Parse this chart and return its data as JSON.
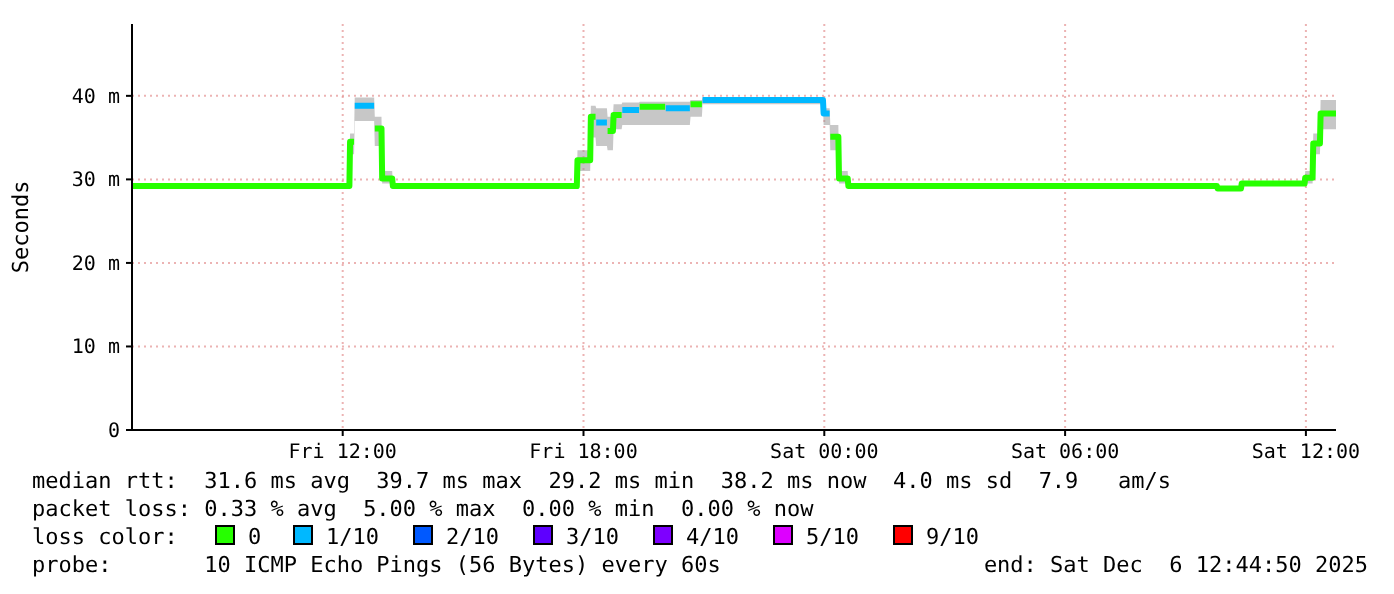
{
  "chart_data": {
    "type": "line",
    "ylabel": "Seconds",
    "legend_title": "loss color:",
    "legend": "bottom",
    "grid": true,
    "x": [
      "2025-12-05T06:45",
      "2025-12-05T12:10",
      "2025-12-05T12:11",
      "2025-12-05T12:17",
      "2025-12-05T12:18",
      "2025-12-05T12:47",
      "2025-12-05T12:48",
      "2025-12-05T12:58",
      "2025-12-05T12:59",
      "2025-12-05T13:14",
      "2025-12-05T13:15",
      "2025-12-05T17:50",
      "2025-12-05T17:51",
      "2025-12-05T18:10",
      "2025-12-05T18:11",
      "2025-12-05T18:18",
      "2025-12-05T18:19",
      "2025-12-05T18:35",
      "2025-12-05T18:36",
      "2025-12-05T18:44",
      "2025-12-05T18:45",
      "2025-12-05T18:57",
      "2025-12-05T18:58",
      "2025-12-05T19:23",
      "2025-12-05T19:24",
      "2025-12-05T20:02",
      "2025-12-05T20:03",
      "2025-12-05T20:39",
      "2025-12-05T20:40",
      "2025-12-05T20:57",
      "2025-12-05T20:58",
      "2025-12-05T23:58",
      "2025-12-05T23:59",
      "2025-12-06T00:08",
      "2025-12-06T00:09",
      "2025-12-06T00:21",
      "2025-12-06T00:22",
      "2025-12-06T00:35",
      "2025-12-06T00:36",
      "2025-12-06T09:47",
      "2025-12-06T09:48",
      "2025-12-06T10:23",
      "2025-12-06T10:24",
      "2025-12-06T11:58",
      "2025-12-06T11:59",
      "2025-12-06T12:10",
      "2025-12-06T12:11",
      "2025-12-06T12:21",
      "2025-12-06T12:22",
      "2025-12-06T12:45"
    ],
    "xlim": [
      "2025-12-05T06:45",
      "2025-12-06T12:45"
    ],
    "xticks": [
      {
        "value": "2025-12-05T12:00",
        "label": "Fri 12:00"
      },
      {
        "value": "2025-12-05T18:00",
        "label": "Fri 18:00"
      },
      {
        "value": "2025-12-06T00:00",
        "label": "Sat 00:00"
      },
      {
        "value": "2025-12-06T06:00",
        "label": "Sat 06:00"
      },
      {
        "value": "2025-12-06T12:00",
        "label": "Sat 12:00"
      }
    ],
    "ylim": [
      0,
      48.6
    ],
    "yticks": [
      0,
      {
        "value": 10,
        "label": "10 m"
      },
      {
        "value": 20,
        "label": "20 m"
      },
      {
        "value": 30,
        "label": "30 m"
      },
      {
        "value": 40,
        "label": "40 m"
      }
    ],
    "series": [
      {
        "name": "0",
        "color": "#26ff00",
        "values": [
          29.2,
          29.2,
          34.5,
          34.5,
          null,
          null,
          36.1,
          36.1,
          30.1,
          30.1,
          29.2,
          29.2,
          32.3,
          32.3,
          37.5,
          37.5,
          null,
          null,
          35.8,
          35.8,
          37.7,
          37.7,
          null,
          null,
          38.7,
          38.7,
          null,
          null,
          39.0,
          39.0,
          null,
          null,
          null,
          null,
          35.1,
          35.1,
          30.1,
          30.1,
          29.2,
          29.2,
          28.9,
          28.9,
          29.5,
          29.5,
          30.2,
          30.2,
          34.3,
          34.3,
          37.9,
          37.9
        ],
        "lower": [
          29.2,
          29.2,
          33,
          33,
          37,
          37,
          34,
          34,
          29.5,
          29.5,
          29.2,
          29.2,
          31,
          31,
          35,
          35,
          34,
          34,
          33.5,
          33.5,
          36,
          36,
          36.5,
          36.5,
          36.5,
          36.5,
          36.5,
          36.5,
          37.5,
          37.5,
          39,
          39,
          36.5,
          36.5,
          33.5,
          33.5,
          29.5,
          29.5,
          29.2,
          29.2,
          28.9,
          28.9,
          29.5,
          29.5,
          29.5,
          29.5,
          33,
          33,
          36,
          36
        ],
        "upper": [
          29.2,
          29.2,
          35.5,
          35.5,
          39.8,
          39.8,
          37.5,
          37.5,
          31,
          31,
          29.2,
          29.2,
          33.5,
          33.5,
          38.8,
          38.8,
          38.5,
          38.5,
          37.5,
          37.5,
          39,
          39,
          39.2,
          39.2,
          39.3,
          39.3,
          39.3,
          39.3,
          39.5,
          39.5,
          39.8,
          39.8,
          38.5,
          38.5,
          36.5,
          36.5,
          31,
          31,
          29.2,
          29.2,
          28.9,
          28.9,
          29.5,
          29.5,
          31,
          31,
          35.5,
          35.5,
          39.5,
          39.5
        ]
      },
      {
        "name": "1/10",
        "color": "#00b8ff",
        "values": [
          null,
          null,
          null,
          null,
          38.8,
          38.8,
          null,
          null,
          null,
          null,
          null,
          null,
          null,
          null,
          null,
          null,
          36.8,
          36.8,
          null,
          null,
          null,
          null,
          38.3,
          38.3,
          null,
          null,
          38.5,
          38.5,
          null,
          null,
          39.5,
          39.5,
          37.9,
          37.9,
          null,
          null,
          null,
          null,
          null,
          null,
          null,
          null,
          null,
          null,
          null,
          null,
          null,
          null,
          null,
          null
        ]
      },
      {
        "name": "2/10",
        "color": "#0059ff",
        "values": [
          null,
          null,
          null,
          null,
          null,
          null,
          null,
          null,
          null,
          null,
          null,
          null,
          null,
          null,
          null,
          null,
          null,
          null,
          null,
          null,
          null,
          null,
          null,
          null,
          null,
          null,
          null,
          null,
          null,
          null,
          null,
          null,
          null,
          null,
          null,
          null,
          null,
          null,
          null,
          null,
          null,
          null,
          null,
          null,
          null,
          null,
          null,
          null,
          null,
          null
        ]
      },
      {
        "name": "3/10",
        "color": "#5e00ff",
        "values": [
          null,
          null,
          null,
          null,
          null,
          null,
          null,
          null,
          null,
          null,
          null,
          null,
          null,
          null,
          null,
          null,
          null,
          null,
          null,
          null,
          null,
          null,
          null,
          null,
          null,
          null,
          null,
          null,
          null,
          null,
          null,
          null,
          null,
          null,
          null,
          null,
          null,
          null,
          null,
          null,
          null,
          null,
          null,
          null,
          null,
          null,
          null,
          null,
          null,
          null
        ]
      },
      {
        "name": "4/10",
        "color": "#7e00ff",
        "values": [
          null,
          null,
          null,
          null,
          null,
          null,
          null,
          null,
          null,
          null,
          null,
          null,
          null,
          null,
          null,
          null,
          null,
          null,
          null,
          null,
          null,
          null,
          null,
          null,
          null,
          null,
          null,
          null,
          null,
          null,
          null,
          null,
          null,
          null,
          null,
          null,
          null,
          null,
          null,
          null,
          null,
          null,
          null,
          null,
          null,
          null,
          null,
          null,
          null,
          null
        ]
      },
      {
        "name": "5/10",
        "color": "#dd00ff",
        "values": [
          null,
          null,
          null,
          null,
          null,
          null,
          null,
          null,
          null,
          null,
          null,
          null,
          null,
          null,
          null,
          null,
          null,
          null,
          null,
          null,
          null,
          null,
          null,
          null,
          null,
          null,
          null,
          null,
          null,
          null,
          null,
          null,
          null,
          null,
          null,
          null,
          null,
          null,
          null,
          null,
          null,
          null,
          null,
          null,
          null,
          null,
          null,
          null,
          null,
          null
        ]
      },
      {
        "name": "9/10",
        "color": "#ff0000",
        "values": [
          null,
          null,
          null,
          null,
          null,
          null,
          null,
          null,
          null,
          null,
          null,
          null,
          null,
          null,
          null,
          null,
          null,
          null,
          null,
          null,
          null,
          null,
          null,
          null,
          null,
          null,
          null,
          null,
          null,
          null,
          null,
          null,
          null,
          null,
          null,
          null,
          null,
          null,
          null,
          null,
          null,
          null,
          null,
          null,
          null,
          null,
          null,
          null,
          null,
          null
        ]
      }
    ],
    "annotations": [
      "median rtt:  31.6 ms avg  39.7 ms max  29.2 ms min  38.2 ms now  4.0 ms sd  7.9   am/s",
      "packet loss: 0.33 % avg  5.00 % max  0.00 % min  0.00 % now",
      "probe:       10 ICMP Echo Pings (56 Bytes) every 60s",
      "end: Sat Dec  6 12:44:50 2025"
    ]
  }
}
